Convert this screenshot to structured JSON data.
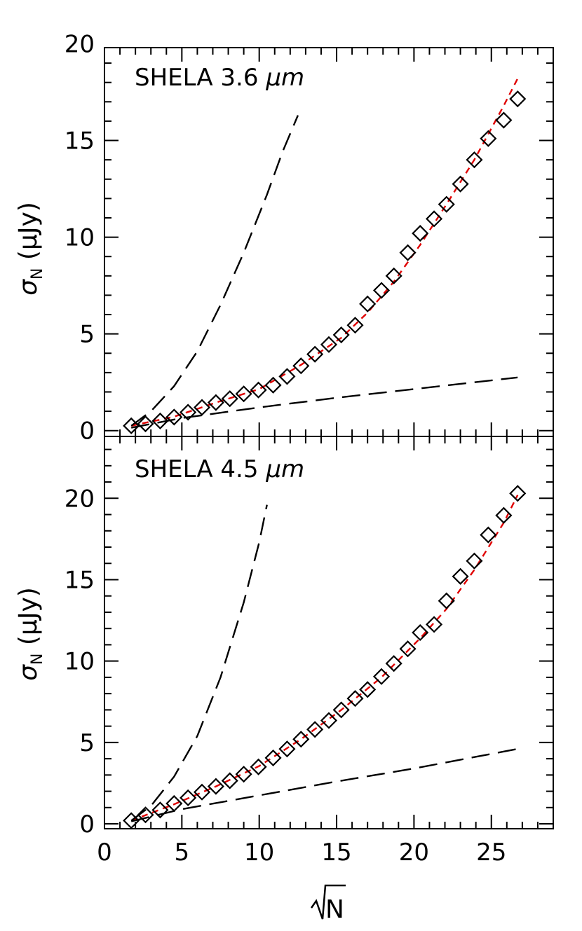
{
  "chart_data": [
    {
      "type": "scatter",
      "title": "SHELA 3.6 μm",
      "title_prefix": "SHELA 3.6 ",
      "title_unit": "μm",
      "ylabel": "σN (μJy)",
      "ylabel_sym": "σ",
      "ylabel_sub": "N",
      "ylabel_unit": " (μJy)",
      "xlim": [
        0,
        29
      ],
      "ylim": [
        -0.3,
        19.8
      ],
      "yticks": [
        0,
        5,
        10,
        15,
        20
      ],
      "series": [
        {
          "marker": "diamond",
          "x": [
            1.73,
            2.65,
            3.6,
            4.5,
            5.4,
            6.3,
            7.2,
            8.1,
            9.0,
            9.95,
            10.9,
            11.8,
            12.7,
            13.6,
            14.5,
            15.3,
            16.2,
            17.0,
            17.9,
            18.7,
            19.6,
            20.4,
            21.3,
            22.1,
            23.0,
            23.9,
            24.8,
            25.8,
            26.7
          ],
          "y": [
            0.25,
            0.35,
            0.5,
            0.7,
            0.95,
            1.2,
            1.45,
            1.65,
            1.9,
            2.1,
            2.35,
            2.8,
            3.35,
            3.95,
            4.45,
            4.95,
            5.45,
            6.55,
            7.25,
            8.0,
            9.2,
            10.2,
            10.95,
            11.7,
            12.75,
            14.0,
            15.1,
            16.05,
            17.15
          ]
        },
        {
          "line": "red-dashed-fit",
          "x": [
            1.73,
            4.5,
            7.2,
            10.0,
            12.7,
            15.3,
            17.0,
            18.7,
            20.4,
            22.1,
            23.9,
            25.8,
            26.7
          ],
          "y": [
            0.25,
            0.72,
            1.45,
            2.15,
            3.4,
            4.8,
            6.1,
            7.7,
            9.6,
            11.7,
            14.0,
            16.8,
            18.2
          ]
        },
        {
          "line": "black-dashed-upper",
          "x": [
            1.73,
            3.0,
            4.5,
            6.0,
            7.5,
            9.0,
            10.5,
            11.5,
            12.5
          ],
          "y": [
            0.25,
            1.0,
            2.3,
            4.1,
            6.5,
            9.2,
            12.2,
            14.4,
            16.3
          ]
        },
        {
          "line": "black-dashed-lower",
          "x": [
            1.73,
            5.0,
            10.0,
            15.0,
            20.0,
            26.7
          ],
          "y": [
            0.15,
            0.65,
            1.2,
            1.7,
            2.15,
            2.75
          ]
        }
      ]
    },
    {
      "type": "scatter",
      "title": "SHELA 4.5 μm",
      "title_prefix": "SHELA 4.5 ",
      "title_unit": "μm",
      "xlabel": "√N",
      "xlabel_text": "N",
      "ylabel": "σN (μJy)",
      "ylabel_sym": "σ",
      "ylabel_sub": "N",
      "ylabel_unit": " (μJy)",
      "xlim": [
        0,
        29
      ],
      "ylim": [
        -0.3,
        23.8
      ],
      "xticks": [
        0,
        5,
        10,
        15,
        20,
        25
      ],
      "yticks": [
        0,
        5,
        10,
        15,
        20
      ],
      "series": [
        {
          "marker": "diamond",
          "x": [
            1.73,
            2.65,
            3.6,
            4.5,
            5.4,
            6.3,
            7.2,
            8.1,
            9.0,
            9.95,
            10.9,
            11.8,
            12.7,
            13.6,
            14.5,
            15.3,
            16.2,
            17.0,
            17.9,
            18.7,
            19.6,
            20.4,
            21.3,
            22.1,
            23.0,
            23.9,
            24.8,
            25.8,
            26.7
          ],
          "y": [
            0.2,
            0.55,
            0.85,
            1.25,
            1.6,
            1.95,
            2.3,
            2.65,
            3.05,
            3.5,
            4.05,
            4.6,
            5.2,
            5.8,
            6.35,
            7.0,
            7.7,
            8.25,
            9.05,
            9.85,
            10.75,
            11.75,
            12.25,
            13.7,
            15.2,
            16.15,
            17.75,
            18.95,
            20.3
          ]
        },
        {
          "line": "red-dashed-fit",
          "x": [
            1.73,
            4.5,
            7.2,
            10.0,
            12.7,
            15.3,
            17.9,
            20.4,
            22.1,
            23.9,
            25.8,
            26.7
          ],
          "y": [
            0.2,
            1.2,
            2.3,
            3.55,
            5.2,
            7.0,
            9.0,
            11.4,
            13.2,
            15.6,
            18.5,
            20.2
          ]
        },
        {
          "line": "black-dashed-upper",
          "x": [
            1.73,
            3.0,
            4.5,
            6.0,
            7.5,
            9.0,
            10.0,
            10.5
          ],
          "y": [
            0.2,
            1.1,
            2.9,
            5.4,
            9.0,
            13.6,
            17.3,
            19.6
          ]
        },
        {
          "line": "black-dashed-lower",
          "x": [
            1.73,
            5.0,
            10.0,
            15.0,
            20.0,
            26.7
          ],
          "y": [
            0.15,
            0.9,
            1.75,
            2.6,
            3.4,
            4.6
          ]
        }
      ]
    }
  ]
}
